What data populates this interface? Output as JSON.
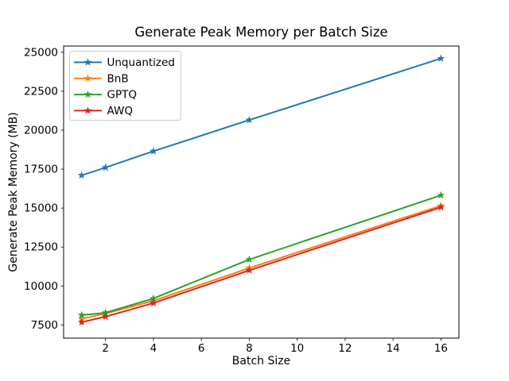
{
  "figure": {
    "title": "Generate Peak Memory per Batch Size",
    "xlabel": "Batch Size",
    "ylabel": "Generate Peak Memory (MB)"
  },
  "chart_data": {
    "type": "line",
    "title": "Generate Peak Memory per Batch Size",
    "xlabel": "Batch Size",
    "ylabel": "Generate Peak Memory (MB)",
    "x": [
      1,
      2,
      4,
      8,
      16
    ],
    "series": [
      {
        "name": "Unquantized",
        "color": "#1f77b4",
        "values": [
          17100,
          17600,
          18650,
          20650,
          24600
        ]
      },
      {
        "name": "BnB",
        "color": "#ff7f0e",
        "values": [
          7900,
          8230,
          9050,
          11150,
          15150
        ]
      },
      {
        "name": "GPTQ",
        "color": "#2ca02c",
        "values": [
          8130,
          8280,
          9200,
          11700,
          15820
        ]
      },
      {
        "name": "AWQ",
        "color": "#d62728",
        "values": [
          7670,
          8030,
          8900,
          11000,
          15050
        ]
      }
    ],
    "xlim": [
      0.25,
      16.75
    ],
    "ylim": [
      6650,
      25400
    ],
    "xticks": [
      2,
      4,
      6,
      8,
      10,
      12,
      14,
      16
    ],
    "yticks": [
      7500,
      10000,
      12500,
      15000,
      17500,
      20000,
      22500,
      25000
    ],
    "marker": "star",
    "grid": false,
    "legend": {
      "position": "upper left",
      "entries": [
        "Unquantized",
        "BnB",
        "GPTQ",
        "AWQ"
      ]
    },
    "colors": {
      "axes_edge": "#000000",
      "tick_label": "#000000",
      "legend_border": "#cccccc",
      "legend_background": "#ffffff"
    }
  }
}
